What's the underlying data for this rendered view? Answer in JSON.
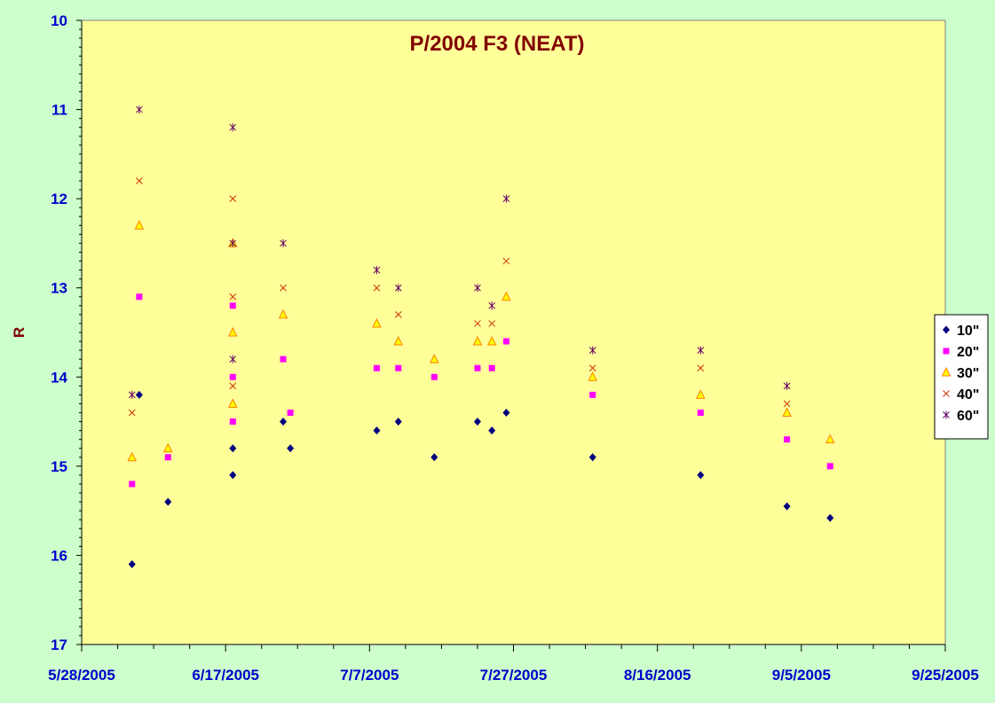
{
  "chart_data": {
    "type": "scatter",
    "title": "P/2004 F3 (NEAT)",
    "xlabel": "",
    "ylabel": "R",
    "x_axis": {
      "min": "2005-05-28",
      "max": "2005-09-25",
      "tick_labels": [
        "5/28/2005",
        "6/17/2005",
        "7/7/2005",
        "7/27/2005",
        "8/16/2005",
        "9/5/2005",
        "9/25/2005"
      ]
    },
    "y_axis": {
      "min": 10,
      "max": 17,
      "reversed": true,
      "tick_labels": [
        "10",
        "11",
        "12",
        "13",
        "14",
        "15",
        "16",
        "17"
      ]
    },
    "grid": false,
    "legend_position": "right",
    "colors": {
      "plot_background": "#ffff99",
      "figure_background": "#ccffcc",
      "tick_text": "#0000cc",
      "title_text": "#800000"
    },
    "series": [
      {
        "name": "10\"",
        "marker": "diamond",
        "color": "#000080",
        "points": [
          {
            "x": "2005-06-04",
            "y": 16.1
          },
          {
            "x": "2005-06-05",
            "y": 14.2
          },
          {
            "x": "2005-06-09",
            "y": 15.4
          },
          {
            "x": "2005-06-18",
            "y": 15.1
          },
          {
            "x": "2005-06-18",
            "y": 14.8
          },
          {
            "x": "2005-06-25",
            "y": 14.5
          },
          {
            "x": "2005-06-26",
            "y": 14.8
          },
          {
            "x": "2005-07-08",
            "y": 14.6
          },
          {
            "x": "2005-07-11",
            "y": 14.5
          },
          {
            "x": "2005-07-16",
            "y": 14.9
          },
          {
            "x": "2005-07-22",
            "y": 14.5
          },
          {
            "x": "2005-07-24",
            "y": 14.6
          },
          {
            "x": "2005-07-26",
            "y": 14.4
          },
          {
            "x": "2005-08-07",
            "y": 14.9
          },
          {
            "x": "2005-08-22",
            "y": 15.1
          },
          {
            "x": "2005-09-03",
            "y": 15.45
          },
          {
            "x": "2005-09-09",
            "y": 15.58
          }
        ]
      },
      {
        "name": "20\"",
        "marker": "square",
        "color": "#ff00ff",
        "points": [
          {
            "x": "2005-06-04",
            "y": 15.2
          },
          {
            "x": "2005-06-05",
            "y": 13.1
          },
          {
            "x": "2005-06-09",
            "y": 14.9
          },
          {
            "x": "2005-06-18",
            "y": 13.2
          },
          {
            "x": "2005-06-18",
            "y": 14.0
          },
          {
            "x": "2005-06-18",
            "y": 14.5
          },
          {
            "x": "2005-06-25",
            "y": 13.8
          },
          {
            "x": "2005-06-26",
            "y": 14.4
          },
          {
            "x": "2005-07-08",
            "y": 13.9
          },
          {
            "x": "2005-07-11",
            "y": 13.9
          },
          {
            "x": "2005-07-16",
            "y": 14.0
          },
          {
            "x": "2005-07-22",
            "y": 13.9
          },
          {
            "x": "2005-07-24",
            "y": 13.9
          },
          {
            "x": "2005-07-26",
            "y": 13.6
          },
          {
            "x": "2005-08-07",
            "y": 14.2
          },
          {
            "x": "2005-08-22",
            "y": 14.4
          },
          {
            "x": "2005-09-03",
            "y": 14.7
          },
          {
            "x": "2005-09-09",
            "y": 15.0
          }
        ]
      },
      {
        "name": "30\"",
        "marker": "triangle",
        "color": "#ff8000",
        "fill": "#ffff00",
        "points": [
          {
            "x": "2005-06-04",
            "y": 14.9
          },
          {
            "x": "2005-06-05",
            "y": 12.3
          },
          {
            "x": "2005-06-09",
            "y": 14.8
          },
          {
            "x": "2005-06-18",
            "y": 12.5
          },
          {
            "x": "2005-06-18",
            "y": 13.5
          },
          {
            "x": "2005-06-18",
            "y": 14.3
          },
          {
            "x": "2005-06-25",
            "y": 13.3
          },
          {
            "x": "2005-07-08",
            "y": 13.4
          },
          {
            "x": "2005-07-11",
            "y": 13.6
          },
          {
            "x": "2005-07-16",
            "y": 13.8
          },
          {
            "x": "2005-07-22",
            "y": 13.6
          },
          {
            "x": "2005-07-24",
            "y": 13.6
          },
          {
            "x": "2005-07-26",
            "y": 13.1
          },
          {
            "x": "2005-08-07",
            "y": 14.0
          },
          {
            "x": "2005-08-22",
            "y": 14.2
          },
          {
            "x": "2005-09-03",
            "y": 14.4
          },
          {
            "x": "2005-09-09",
            "y": 14.7
          }
        ]
      },
      {
        "name": "40\"",
        "marker": "x",
        "color": "#cc3300",
        "points": [
          {
            "x": "2005-06-04",
            "y": 14.4
          },
          {
            "x": "2005-06-05",
            "y": 11.8
          },
          {
            "x": "2005-06-18",
            "y": 12.0
          },
          {
            "x": "2005-06-18",
            "y": 13.1
          },
          {
            "x": "2005-06-18",
            "y": 14.1
          },
          {
            "x": "2005-06-25",
            "y": 13.0
          },
          {
            "x": "2005-07-08",
            "y": 13.0
          },
          {
            "x": "2005-07-11",
            "y": 13.3
          },
          {
            "x": "2005-07-22",
            "y": 13.4
          },
          {
            "x": "2005-07-24",
            "y": 13.4
          },
          {
            "x": "2005-07-26",
            "y": 12.7
          },
          {
            "x": "2005-08-07",
            "y": 13.9
          },
          {
            "x": "2005-08-22",
            "y": 13.9
          },
          {
            "x": "2005-09-03",
            "y": 14.3
          }
        ]
      },
      {
        "name": "60\"",
        "marker": "star",
        "color": "#660066",
        "points": [
          {
            "x": "2005-06-04",
            "y": 14.2
          },
          {
            "x": "2005-06-05",
            "y": 11.0
          },
          {
            "x": "2005-06-18",
            "y": 11.2
          },
          {
            "x": "2005-06-18",
            "y": 12.5
          },
          {
            "x": "2005-06-18",
            "y": 13.8
          },
          {
            "x": "2005-06-25",
            "y": 12.5
          },
          {
            "x": "2005-07-08",
            "y": 12.8
          },
          {
            "x": "2005-07-11",
            "y": 13.0
          },
          {
            "x": "2005-07-22",
            "y": 13.0
          },
          {
            "x": "2005-07-24",
            "y": 13.2
          },
          {
            "x": "2005-07-26",
            "y": 12.0
          },
          {
            "x": "2005-08-07",
            "y": 13.7
          },
          {
            "x": "2005-08-22",
            "y": 13.7
          },
          {
            "x": "2005-09-03",
            "y": 14.1
          }
        ]
      }
    ]
  }
}
